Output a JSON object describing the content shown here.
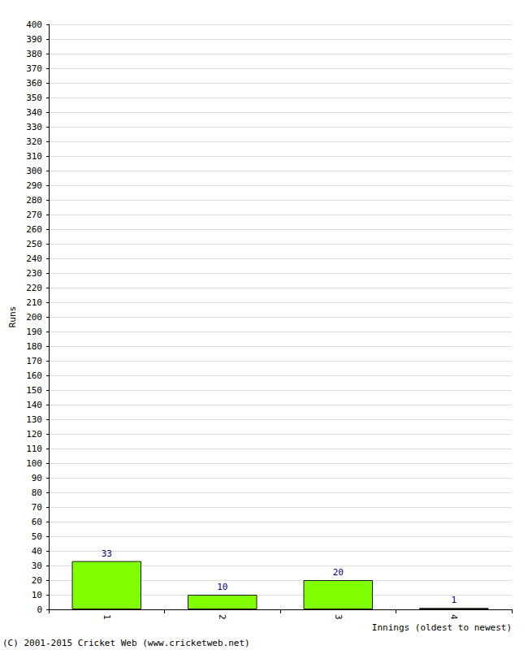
{
  "chart_data": {
    "type": "bar",
    "categories": [
      "1",
      "2",
      "3",
      "4"
    ],
    "values": [
      33,
      10,
      20,
      1
    ],
    "color": "#80ff00",
    "ylim": [
      0,
      400
    ],
    "yticks": [
      0,
      10,
      20,
      30,
      40,
      50,
      60,
      70,
      80,
      90,
      100,
      110,
      120,
      130,
      140,
      150,
      160,
      170,
      180,
      190,
      200,
      210,
      220,
      230,
      240,
      250,
      260,
      270,
      280,
      290,
      300,
      310,
      320,
      330,
      340,
      350,
      360,
      370,
      380,
      390,
      400
    ],
    "y_label": "Runs",
    "x_label": "Innings (oldest to newest)",
    "annotation": "(C) 2001-2015 Cricket Web (www.cricketweb.net)",
    "grid": true,
    "data_labels": true
  }
}
